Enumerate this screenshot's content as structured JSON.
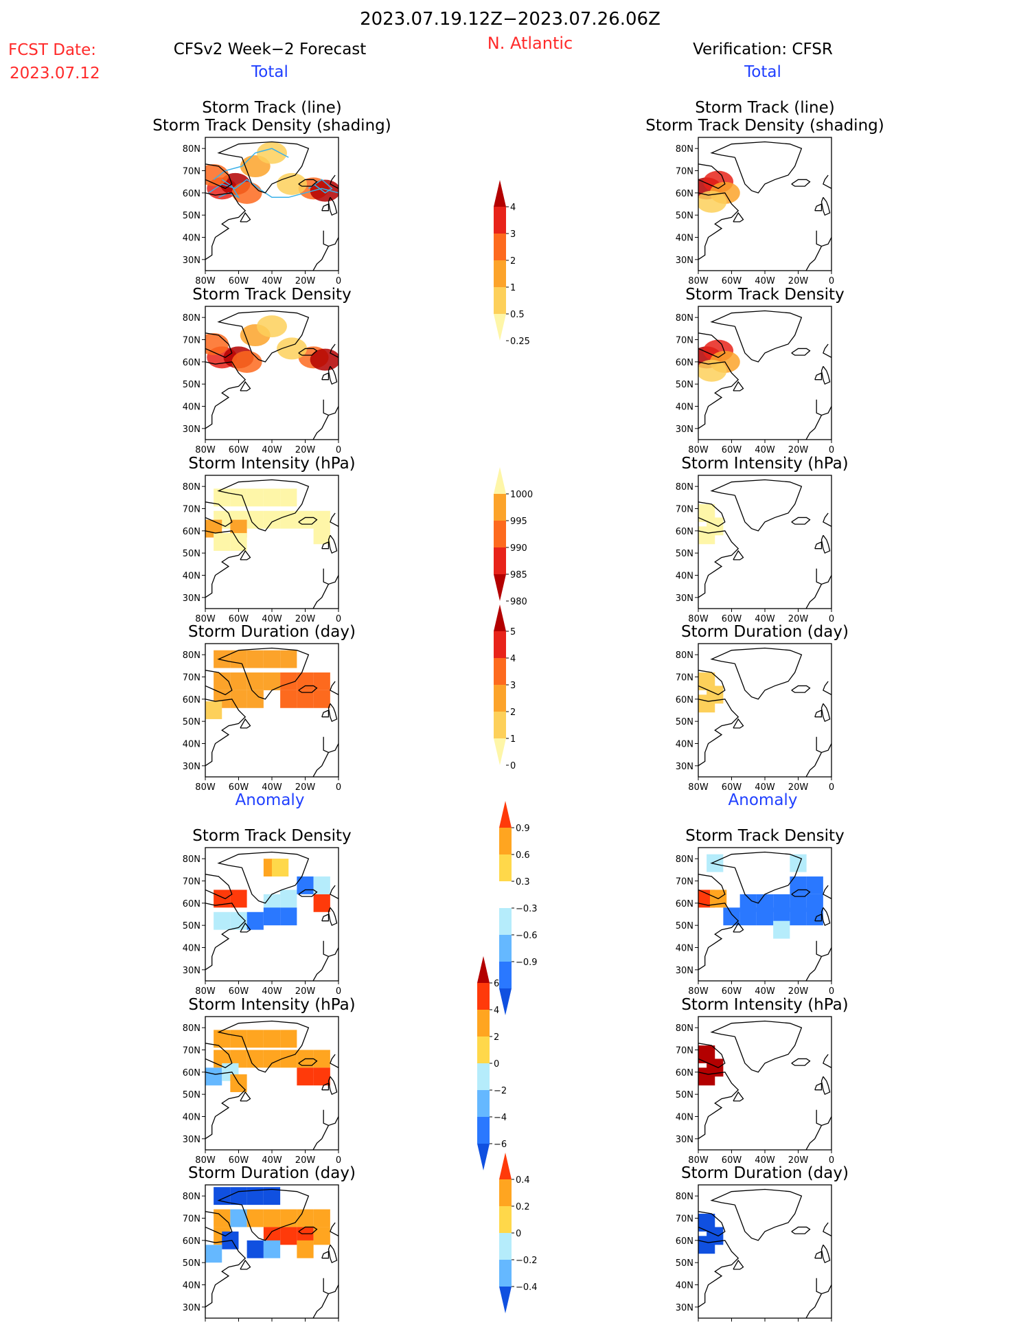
{
  "header": {
    "date_range": "2023.07.19.12Z−2023.07.26.06Z",
    "region": "N. Atlantic",
    "fcst_label": "FCST Date:",
    "fcst_date": "2023.07.12",
    "left_title": "CFSv2 Week−2 Forecast",
    "right_title": "Verification: CFSR",
    "total_label": "Total",
    "anomaly_label": "Anomaly"
  },
  "colors": {
    "red_text": "#ff2a2a",
    "blue_text": "#1f3fff",
    "track_line": "#3ab0e8",
    "land_outline": "#000000"
  },
  "chart_data": [
    {
      "id": "fcst-track",
      "type": "heatmap",
      "column": "forecast",
      "section": "total",
      "title_lines": [
        "Storm Track (line)",
        "Storm Track Density (shading)"
      ],
      "overlay": "storm-track-lines",
      "scale": "density",
      "xlim": [
        -80,
        0
      ],
      "ylim": [
        25,
        85
      ],
      "xticks": [
        "80W",
        "60W",
        "40W",
        "20W",
        "0"
      ],
      "yticks": [
        "30N",
        "40N",
        "50N",
        "60N",
        "70N",
        "80N"
      ],
      "cells": [
        [
          -70,
          62,
          3
        ],
        [
          -62,
          64,
          4
        ],
        [
          -75,
          68,
          2
        ],
        [
          -55,
          60,
          2
        ],
        [
          -50,
          72,
          1
        ],
        [
          -40,
          78,
          0.5
        ],
        [
          -15,
          62,
          2
        ],
        [
          -8,
          61,
          4
        ],
        [
          -28,
          64,
          0.5
        ]
      ]
    },
    {
      "id": "cfsr-track",
      "type": "heatmap",
      "column": "verification",
      "section": "total",
      "title_lines": [
        "Storm Track (line)",
        "Storm Track Density (shading)"
      ],
      "scale": "density",
      "xlim": [
        -80,
        0
      ],
      "ylim": [
        25,
        85
      ],
      "xticks": [
        "80W",
        "60W",
        "40W",
        "20W",
        "0"
      ],
      "yticks": [
        "30N",
        "40N",
        "50N",
        "60N",
        "70N",
        "80N"
      ],
      "cells": [
        [
          -75,
          62,
          4
        ],
        [
          -68,
          65,
          3
        ],
        [
          -64,
          60,
          1
        ],
        [
          -72,
          56,
          0.5
        ]
      ]
    },
    {
      "id": "fcst-density",
      "type": "heatmap",
      "column": "forecast",
      "section": "total",
      "title_lines": [
        "Storm Track Density"
      ],
      "scale": "density",
      "xlim": [
        -80,
        0
      ],
      "ylim": [
        25,
        85
      ],
      "xticks": [
        "80W",
        "60W",
        "40W",
        "20W",
        "0"
      ],
      "yticks": [
        "30N",
        "40N",
        "50N",
        "60N",
        "70N",
        "80N"
      ],
      "cells": [
        [
          -70,
          62,
          3
        ],
        [
          -60,
          62,
          4
        ],
        [
          -75,
          68,
          2
        ],
        [
          -55,
          60,
          2
        ],
        [
          -50,
          72,
          1
        ],
        [
          -40,
          76,
          0.5
        ],
        [
          -15,
          62,
          2
        ],
        [
          -8,
          61,
          4
        ],
        [
          -28,
          66,
          0.5
        ]
      ]
    },
    {
      "id": "cfsr-density",
      "type": "heatmap",
      "column": "verification",
      "section": "total",
      "title_lines": [
        "Storm Track Density"
      ],
      "scale": "density",
      "xlim": [
        -80,
        0
      ],
      "ylim": [
        25,
        85
      ],
      "xticks": [
        "80W",
        "60W",
        "40W",
        "20W",
        "0"
      ],
      "yticks": [
        "30N",
        "40N",
        "50N",
        "60N",
        "70N",
        "80N"
      ],
      "cells": [
        [
          -75,
          62,
          4
        ],
        [
          -68,
          65,
          3
        ],
        [
          -64,
          60,
          1
        ],
        [
          -72,
          56,
          0.5
        ]
      ]
    },
    {
      "id": "fcst-intensity",
      "type": "heatmap",
      "column": "forecast",
      "section": "total",
      "title_lines": [
        "Storm Intensity (hPa)"
      ],
      "scale": "intensity",
      "xlim": [
        -80,
        0
      ],
      "ylim": [
        25,
        85
      ],
      "xticks": [
        "80W",
        "60W",
        "40W",
        "20W",
        "0"
      ],
      "yticks": [
        "30N",
        "40N",
        "50N",
        "60N",
        "70N",
        "80N"
      ],
      "cells": [
        [
          -70,
          75,
          1000
        ],
        [
          -60,
          75,
          1000
        ],
        [
          -50,
          75,
          1000
        ],
        [
          -40,
          75,
          1000
        ],
        [
          -30,
          75,
          1000
        ],
        [
          -70,
          65,
          1000
        ],
        [
          -60,
          65,
          1000
        ],
        [
          -50,
          65,
          1000
        ],
        [
          -40,
          65,
          1000
        ],
        [
          -30,
          65,
          1000
        ],
        [
          -20,
          65,
          1000
        ],
        [
          -10,
          65,
          1000
        ],
        [
          -60,
          61,
          995
        ],
        [
          -75,
          61,
          995
        ],
        [
          -70,
          55,
          1000
        ],
        [
          -60,
          55,
          1000
        ],
        [
          -10,
          58,
          1000
        ]
      ]
    },
    {
      "id": "cfsr-intensity",
      "type": "heatmap",
      "column": "verification",
      "section": "total",
      "title_lines": [
        "Storm Intensity (hPa)"
      ],
      "scale": "intensity",
      "xlim": [
        -80,
        0
      ],
      "ylim": [
        25,
        85
      ],
      "xticks": [
        "80W",
        "60W",
        "40W",
        "20W",
        "0"
      ],
      "yticks": [
        "30N",
        "40N",
        "50N",
        "60N",
        "70N",
        "80N"
      ],
      "cells": [
        [
          -75,
          68,
          1000
        ],
        [
          -70,
          62,
          1000
        ],
        [
          -75,
          58,
          1000
        ]
      ]
    },
    {
      "id": "fcst-duration",
      "type": "heatmap",
      "column": "forecast",
      "section": "total",
      "title_lines": [
        "Storm Duration (day)"
      ],
      "scale": "duration",
      "xlim": [
        -80,
        0
      ],
      "ylim": [
        25,
        85
      ],
      "xticks": [
        "80W",
        "60W",
        "40W",
        "20W",
        "0"
      ],
      "yticks": [
        "30N",
        "40N",
        "50N",
        "60N",
        "70N",
        "80N"
      ],
      "cells": [
        [
          -70,
          78,
          2
        ],
        [
          -60,
          78,
          2
        ],
        [
          -50,
          78,
          2
        ],
        [
          -40,
          78,
          2
        ],
        [
          -30,
          78,
          2
        ],
        [
          -70,
          68,
          2
        ],
        [
          -60,
          68,
          2
        ],
        [
          -50,
          68,
          2
        ],
        [
          -40,
          68,
          2
        ],
        [
          -30,
          68,
          3
        ],
        [
          -20,
          68,
          3
        ],
        [
          -10,
          68,
          3
        ],
        [
          -70,
          60,
          2
        ],
        [
          -60,
          60,
          2
        ],
        [
          -50,
          60,
          2
        ],
        [
          -30,
          60,
          3
        ],
        [
          -20,
          60,
          3
        ],
        [
          -10,
          60,
          3
        ],
        [
          -75,
          55,
          1
        ]
      ]
    },
    {
      "id": "cfsr-duration",
      "type": "heatmap",
      "column": "verification",
      "section": "total",
      "title_lines": [
        "Storm Duration (day)"
      ],
      "scale": "duration",
      "xlim": [
        -80,
        0
      ],
      "ylim": [
        25,
        85
      ],
      "xticks": [
        "80W",
        "60W",
        "40W",
        "20W",
        "0"
      ],
      "yticks": [
        "30N",
        "40N",
        "50N",
        "60N",
        "70N",
        "80N"
      ],
      "cells": [
        [
          -75,
          68,
          1
        ],
        [
          -70,
          62,
          1
        ],
        [
          -75,
          58,
          1
        ]
      ]
    },
    {
      "id": "fcst-density-anom",
      "type": "heatmap",
      "column": "forecast",
      "section": "anomaly",
      "title_lines": [
        "Storm Track Density"
      ],
      "scale": "density_anom",
      "xlim": [
        -80,
        0
      ],
      "ylim": [
        25,
        85
      ],
      "xticks": [
        "80W",
        "60W",
        "40W",
        "20W",
        "0"
      ],
      "yticks": [
        "30N",
        "40N",
        "50N",
        "60N",
        "70N",
        "80N"
      ],
      "cells": [
        [
          -70,
          62,
          0.9
        ],
        [
          -60,
          62,
          0.9
        ],
        [
          -40,
          76,
          0.6
        ],
        [
          -35,
          76,
          0.3
        ],
        [
          -10,
          60,
          0.9
        ],
        [
          -40,
          60,
          -0.3
        ],
        [
          -30,
          62,
          -0.3
        ],
        [
          -20,
          68,
          -0.6
        ],
        [
          -10,
          68,
          -0.3
        ],
        [
          -40,
          54,
          -0.6
        ],
        [
          -30,
          54,
          -0.6
        ],
        [
          -50,
          52,
          -0.6
        ],
        [
          -60,
          52,
          -0.3
        ],
        [
          -70,
          52,
          -0.3
        ]
      ]
    },
    {
      "id": "cfsr-density-anom",
      "type": "heatmap",
      "column": "verification",
      "section": "anomaly",
      "title_lines": [
        "Storm Track Density"
      ],
      "scale": "density_anom",
      "xlim": [
        -80,
        0
      ],
      "ylim": [
        25,
        85
      ],
      "xticks": [
        "80W",
        "60W",
        "40W",
        "20W",
        "0"
      ],
      "yticks": [
        "30N",
        "40N",
        "50N",
        "60N",
        "70N",
        "80N"
      ],
      "cells": [
        [
          -75,
          62,
          0.9
        ],
        [
          -68,
          62,
          0.6
        ],
        [
          -50,
          60,
          -0.6
        ],
        [
          -40,
          60,
          -0.6
        ],
        [
          -30,
          60,
          -0.6
        ],
        [
          -20,
          60,
          -0.6
        ],
        [
          -10,
          60,
          -0.6
        ],
        [
          -60,
          54,
          -0.6
        ],
        [
          -50,
          54,
          -0.6
        ],
        [
          -40,
          54,
          -0.6
        ],
        [
          -30,
          54,
          -0.6
        ],
        [
          -20,
          54,
          -0.6
        ],
        [
          -10,
          54,
          -0.6
        ],
        [
          -20,
          68,
          -0.6
        ],
        [
          -10,
          68,
          -0.6
        ],
        [
          -70,
          78,
          -0.3
        ],
        [
          -20,
          78,
          -0.3
        ],
        [
          -30,
          48,
          -0.3
        ]
      ]
    },
    {
      "id": "fcst-intensity-anom",
      "type": "heatmap",
      "column": "forecast",
      "section": "anomaly",
      "title_lines": [
        "Storm Intensity (hPa)"
      ],
      "scale": "intensity_anom",
      "xlim": [
        -80,
        0
      ],
      "ylim": [
        25,
        85
      ],
      "xticks": [
        "80W",
        "60W",
        "40W",
        "20W",
        "0"
      ],
      "yticks": [
        "30N",
        "40N",
        "50N",
        "60N",
        "70N",
        "80N"
      ],
      "cells": [
        [
          -70,
          75,
          2
        ],
        [
          -60,
          75,
          2
        ],
        [
          -50,
          75,
          2
        ],
        [
          -40,
          75,
          2
        ],
        [
          -30,
          75,
          2
        ],
        [
          -70,
          66,
          2
        ],
        [
          -60,
          66,
          2
        ],
        [
          -50,
          66,
          2
        ],
        [
          -40,
          66,
          2
        ],
        [
          -30,
          66,
          2
        ],
        [
          -20,
          66,
          2
        ],
        [
          -10,
          66,
          2
        ],
        [
          -75,
          58,
          -2
        ],
        [
          -65,
          60,
          0
        ],
        [
          -20,
          58,
          4
        ],
        [
          -10,
          58,
          4
        ],
        [
          -60,
          55,
          2
        ]
      ]
    },
    {
      "id": "cfsr-intensity-anom",
      "type": "heatmap",
      "column": "verification",
      "section": "anomaly",
      "title_lines": [
        "Storm Intensity (hPa)"
      ],
      "scale": "intensity_anom",
      "xlim": [
        -80,
        0
      ],
      "ylim": [
        25,
        85
      ],
      "xticks": [
        "80W",
        "60W",
        "40W",
        "20W",
        "0"
      ],
      "yticks": [
        "30N",
        "40N",
        "50N",
        "60N",
        "70N",
        "80N"
      ],
      "cells": [
        [
          -75,
          68,
          6
        ],
        [
          -70,
          62,
          6
        ],
        [
          -75,
          58,
          6
        ]
      ]
    },
    {
      "id": "fcst-duration-anom",
      "type": "heatmap",
      "column": "forecast",
      "section": "anomaly",
      "title_lines": [
        "Storm Duration (day)"
      ],
      "scale": "duration_anom",
      "xlim": [
        -80,
        0
      ],
      "ylim": [
        25,
        85
      ],
      "xticks": [
        "80W",
        "60W",
        "40W",
        "20W",
        "0"
      ],
      "yticks": [
        "30N",
        "40N",
        "50N",
        "60N",
        "70N",
        "80N"
      ],
      "cells": [
        [
          -70,
          80,
          -0.4
        ],
        [
          -60,
          80,
          -0.4
        ],
        [
          -50,
          80,
          -0.4
        ],
        [
          -40,
          80,
          -0.4
        ],
        [
          -70,
          70,
          0.2
        ],
        [
          -60,
          70,
          -0.2
        ],
        [
          -50,
          70,
          0.2
        ],
        [
          -40,
          70,
          0.2
        ],
        [
          -30,
          70,
          0.2
        ],
        [
          -20,
          70,
          0.2
        ],
        [
          -10,
          70,
          0.2
        ],
        [
          -70,
          62,
          0.2
        ],
        [
          -65,
          60,
          -0.4
        ],
        [
          -40,
          62,
          0.4
        ],
        [
          -30,
          62,
          0.4
        ],
        [
          -20,
          62,
          0.4
        ],
        [
          -10,
          62,
          0.2
        ],
        [
          -50,
          56,
          -0.4
        ],
        [
          -40,
          56,
          -0.2
        ],
        [
          -75,
          54,
          -0.2
        ],
        [
          -20,
          56,
          0.2
        ]
      ]
    },
    {
      "id": "cfsr-duration-anom",
      "type": "heatmap",
      "column": "verification",
      "section": "anomaly",
      "title_lines": [
        "Storm Duration (day)"
      ],
      "scale": "duration_anom",
      "xlim": [
        -80,
        0
      ],
      "ylim": [
        25,
        85
      ],
      "xticks": [
        "80W",
        "60W",
        "40W",
        "20W",
        "0"
      ],
      "yticks": [
        "30N",
        "40N",
        "50N",
        "60N",
        "70N",
        "80N"
      ],
      "cells": [
        [
          -75,
          68,
          -0.4
        ],
        [
          -70,
          62,
          -0.4
        ],
        [
          -75,
          58,
          -0.4
        ]
      ]
    }
  ],
  "colorbars": [
    {
      "id": "density",
      "labels": [
        "4",
        "3",
        "2",
        "1",
        "0.5",
        "0.25"
      ],
      "colors": [
        "#b30000",
        "#e8231a",
        "#fd6a1e",
        "#fca32a",
        "#fdd05a",
        "#fef6a8"
      ],
      "thresholds": [
        4,
        3,
        2,
        1,
        0.5,
        0.25
      ],
      "tail": "bottom-line"
    },
    {
      "id": "intensity",
      "labels": [
        "1000",
        "995",
        "990",
        "985",
        "980"
      ],
      "colors": [
        "#fef6a8",
        "#fca32a",
        "#fd6a1e",
        "#e8231a",
        "#b30000"
      ],
      "thresholds": [
        1000,
        995,
        990,
        985,
        980
      ],
      "tail": "top-line"
    },
    {
      "id": "duration",
      "labels": [
        "5",
        "4",
        "3",
        "2",
        "1",
        "0"
      ],
      "colors": [
        "#b30000",
        "#e8231a",
        "#fd6a1e",
        "#fca32a",
        "#fdd05a",
        "#fef6a8"
      ],
      "thresholds": [
        5,
        4,
        3,
        2,
        1,
        0
      ],
      "tail": "bottom-line"
    },
    {
      "id": "density_anom",
      "labels": [
        "0.9",
        "0.6",
        "0.3",
        "−0.3",
        "−0.6",
        "−0.9"
      ],
      "colors": [
        "#ff3a0a",
        "#ffa520",
        "#ffd84a",
        "#ffffff",
        "#b5ecfb",
        "#65b8ff",
        "#2a78ff",
        "#1050e0"
      ],
      "thresholds": [
        0.9,
        0.6,
        0.3,
        -0.3,
        -0.6,
        -0.9
      ]
    },
    {
      "id": "intensity_anom",
      "labels": [
        "6",
        "4",
        "2",
        "0",
        "−2",
        "−4",
        "−6"
      ],
      "colors": [
        "#b30000",
        "#ff3a0a",
        "#ffa520",
        "#ffd84a",
        "#b5ecfb",
        "#65b8ff",
        "#2a78ff",
        "#1050e0"
      ],
      "thresholds": [
        6,
        4,
        2,
        0,
        -2,
        -4,
        -6
      ]
    },
    {
      "id": "duration_anom",
      "labels": [
        "0.4",
        "0.2",
        "0",
        "−0.2",
        "−0.4"
      ],
      "colors": [
        "#ff3a0a",
        "#ffa520",
        "#ffd84a",
        "#b5ecfb",
        "#65b8ff",
        "#1050e0"
      ],
      "thresholds": [
        0.4,
        0.2,
        0,
        -0.2,
        -0.4
      ]
    }
  ]
}
